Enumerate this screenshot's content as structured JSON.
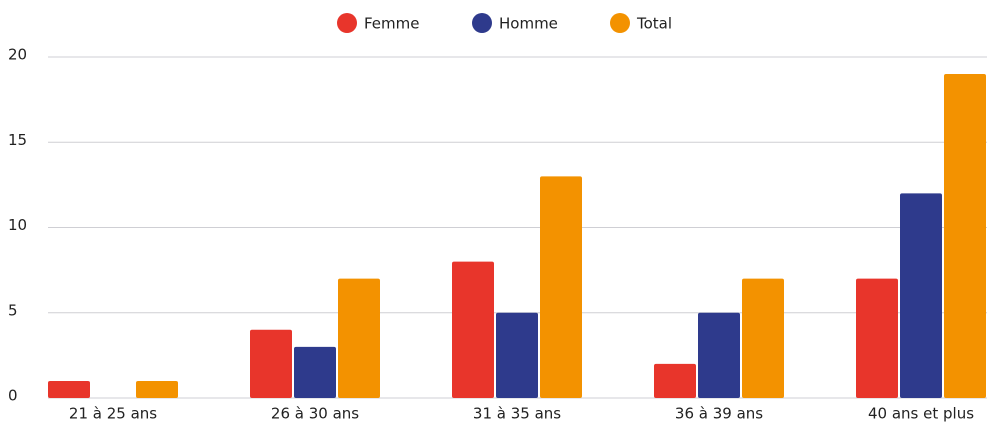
{
  "chart_data": {
    "type": "bar",
    "categories": [
      "21 à 25 ans",
      "26 à 30 ans",
      "31 à 35 ans",
      "36 à 39 ans",
      "40 ans et plus"
    ],
    "series": [
      {
        "name": "Femme",
        "color": "#e8352b",
        "values": [
          1,
          4,
          8,
          2,
          7
        ]
      },
      {
        "name": "Homme",
        "color": "#2e3a8c",
        "values": [
          0,
          3,
          5,
          5,
          12
        ]
      },
      {
        "name": "Total",
        "color": "#f39200",
        "values": [
          1,
          7,
          13,
          7,
          19
        ]
      }
    ],
    "ylim": [
      0,
      20
    ],
    "yticks": [
      0,
      5,
      10,
      15,
      20
    ],
    "grid": true,
    "legend": "top"
  }
}
